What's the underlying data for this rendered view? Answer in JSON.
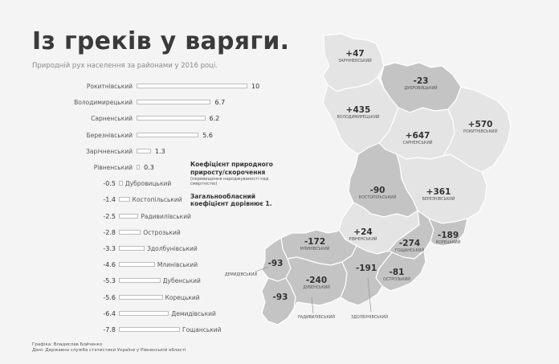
{
  "title": "Із греків у варяги.",
  "subtitle": "Природній рух населення за районами у 2016 році.",
  "legend": {
    "heading": "Коефіцієнт природного приросту/скорочення",
    "subheading": "(перевищення народжуваності над смертністю)",
    "note": "Загальнообласний коефіцієнт дорівнює 1."
  },
  "credits": {
    "author": "Графіка: Владислав Бойченко",
    "source": "Дані: Державна служба статистики України у Рівненській області"
  },
  "chart_data": {
    "type": "bar",
    "categories": [
      "Рокитнівський",
      "Володимирецький",
      "Сарненський",
      "Березнівський",
      "Зарічненський",
      "Рівненський",
      "Дубровицький",
      "Костопільський",
      "Радивилівський",
      "Острозький",
      "Здолбунівський",
      "Млинівський",
      "Дубенський",
      "Корецький",
      "Демидівський",
      "Гощанський"
    ],
    "values": [
      10,
      6.7,
      6.2,
      5.6,
      1.3,
      0.3,
      -0.5,
      -1.4,
      -2.5,
      -2.8,
      -3.3,
      -4.6,
      -5.3,
      -5.6,
      -6.4,
      -7.8
    ],
    "value_labels": [
      "10",
      "6.7",
      "6.2",
      "5.6",
      "1.3",
      "0.3",
      "-0.5",
      "-1.4",
      "-2.5",
      "-2.8",
      "-3.3",
      "-4.6",
      "-5.3",
      "-5.6",
      "-6.4",
      "-7.8"
    ]
  },
  "map": {
    "districts": [
      {
        "name": "ЗАРІЧНЕНСЬКИЙ",
        "value": "+47",
        "fill": "#e4e4e4"
      },
      {
        "name": "ДУБРОВИЦЬКИЙ",
        "value": "-23",
        "fill": "#c4c4c4"
      },
      {
        "name": "ВОЛОДИМИРЕЦЬКИЙ",
        "value": "+435",
        "fill": "#e4e4e4"
      },
      {
        "name": "САРНЕНСЬКИЙ",
        "value": "+647",
        "fill": "#e4e4e4"
      },
      {
        "name": "РОКИТНІВСЬКИЙ",
        "value": "+570",
        "fill": "#e4e4e4"
      },
      {
        "name": "КОСТОПІЛЬСЬКИЙ",
        "value": "-90",
        "fill": "#c4c4c4"
      },
      {
        "name": "БЕРЕЗНІВСЬКИЙ",
        "value": "+361",
        "fill": "#e4e4e4"
      },
      {
        "name": "РІВНЕНСЬКИЙ",
        "value": "+24",
        "fill": "#e4e4e4"
      },
      {
        "name": "ГОЩАНСЬКИЙ",
        "value": "-274",
        "fill": "#c4c4c4"
      },
      {
        "name": "КОРЕЦЬКИЙ",
        "value": "-189",
        "fill": "#c4c4c4"
      },
      {
        "name": "МЛИНІВСЬКИЙ",
        "value": "-172",
        "fill": "#c4c4c4"
      },
      {
        "name": "ДЕМИДІВСЬКИЙ",
        "value": "-93",
        "fill": "#c4c4c4"
      },
      {
        "name": "РАДИВИЛІВСЬКИЙ",
        "value": "-93",
        "fill": "#c4c4c4"
      },
      {
        "name": "ДУБЕНСЬКИЙ",
        "value": "-240",
        "fill": "#c4c4c4"
      },
      {
        "name": "ОСТРОЗЬКИЙ",
        "value": "-81",
        "fill": "#c4c4c4"
      },
      {
        "name": "ЗДОЛБУНІВСЬКИЙ",
        "value": "-191",
        "fill": "#c4c4c4"
      }
    ]
  }
}
